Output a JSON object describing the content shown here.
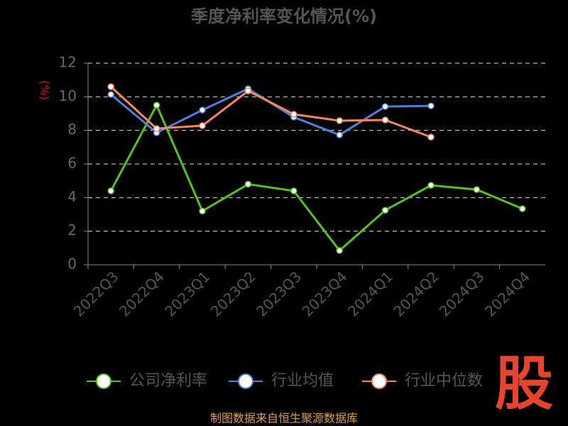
{
  "chart_data": {
    "type": "line",
    "title": "季度净利率变化情况(%)",
    "y_label": "(%)",
    "source": "制图数据来自恒生聚源数据库",
    "watermark": "股",
    "categories": [
      "2022Q3",
      "2022Q4",
      "2023Q1",
      "2023Q2",
      "2023Q3",
      "2023Q4",
      "2024Q1",
      "2024Q2",
      "2024Q3",
      "2024Q4"
    ],
    "series": [
      {
        "name": "公司净利率",
        "color": "#52c41a",
        "values": [
          4.4,
          9.5,
          3.2,
          4.8,
          4.4,
          0.85,
          3.25,
          4.73,
          4.48,
          3.34
        ]
      },
      {
        "name": "行业均值",
        "color": "#4f7fdc",
        "values": [
          10.14,
          7.86,
          9.21,
          10.48,
          8.79,
          7.73,
          9.42,
          9.46,
          null,
          null
        ]
      },
      {
        "name": "行业中位数",
        "color": "#f5875a",
        "values": [
          10.6,
          8.11,
          8.28,
          10.35,
          8.96,
          8.58,
          8.62,
          7.6,
          null,
          null
        ]
      }
    ],
    "ylim": [
      0,
      12
    ],
    "yticks": [
      0,
      2,
      4,
      6,
      8,
      10,
      12
    ],
    "grid": true
  }
}
